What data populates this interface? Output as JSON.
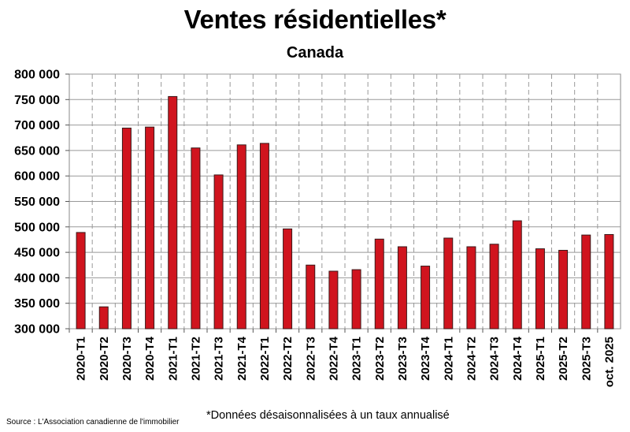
{
  "title": "Ventes résidentielles*",
  "subtitle": "Canada",
  "footnote": "*Données désaisonnalisées à un taux annualisé",
  "source": "Source : L'Association canadienne de l'immobilier",
  "chart_data": {
    "type": "bar",
    "categories": [
      "2020-T1",
      "2020-T2",
      "2020-T3",
      "2020-T4",
      "2021-T1",
      "2021-T2",
      "2021-T3",
      "2021-T4",
      "2022-T1",
      "2022-T2",
      "2022-T3",
      "2022-T4",
      "2023-T1",
      "2023-T2",
      "2023-T3",
      "2023-T4",
      "2024-T1",
      "2024-T2",
      "2024-T3",
      "2024-T4",
      "2025-T1",
      "2025-T2",
      "2025-T3",
      "oct. 2025"
    ],
    "values": [
      489000,
      343000,
      694000,
      696000,
      756000,
      655000,
      602000,
      661000,
      664000,
      496000,
      425000,
      413000,
      416000,
      476000,
      461000,
      423000,
      478000,
      461000,
      466000,
      512000,
      457000,
      454000,
      484000,
      485000
    ],
    "ylim": [
      300000,
      800000
    ],
    "yticks": [
      300000,
      350000,
      400000,
      450000,
      500000,
      550000,
      600000,
      650000,
      700000,
      750000,
      800000
    ],
    "ytick_labels": [
      "300 000",
      "350 000",
      "400 000",
      "450 000",
      "500 000",
      "550 000",
      "600 000",
      "650 000",
      "700 000",
      "750 000",
      "800 000"
    ],
    "grid": true,
    "colors": {
      "bar": "#d0141e",
      "bar_border": "#3a1a1a",
      "grid": "#999999"
    }
  }
}
